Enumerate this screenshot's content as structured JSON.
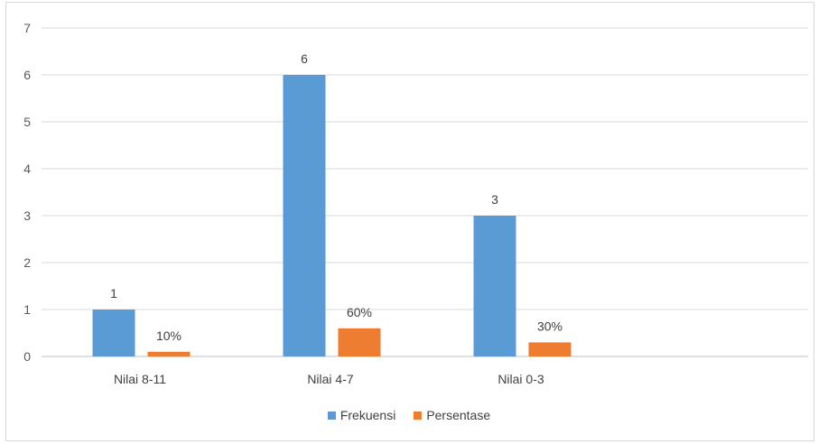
{
  "chart_data": {
    "type": "bar",
    "title": "",
    "xlabel": "",
    "ylabel": "",
    "categories": [
      "Nilai 8-11",
      "Nilai 4-7",
      "Nilai 0-3"
    ],
    "ylim": [
      0,
      7
    ],
    "yticks": [
      0,
      1,
      2,
      3,
      4,
      5,
      6,
      7
    ],
    "grid": true,
    "legend_position": "bottom",
    "series": [
      {
        "name": "Frekuensi",
        "values": [
          1,
          6,
          3
        ],
        "labels": [
          "1",
          "6",
          "3"
        ],
        "color": "#5b9bd5"
      },
      {
        "name": "Persentase",
        "values": [
          0.1,
          0.6,
          0.3
        ],
        "labels": [
          "10%",
          "60%",
          "30%"
        ],
        "color": "#ed7d31"
      }
    ]
  }
}
